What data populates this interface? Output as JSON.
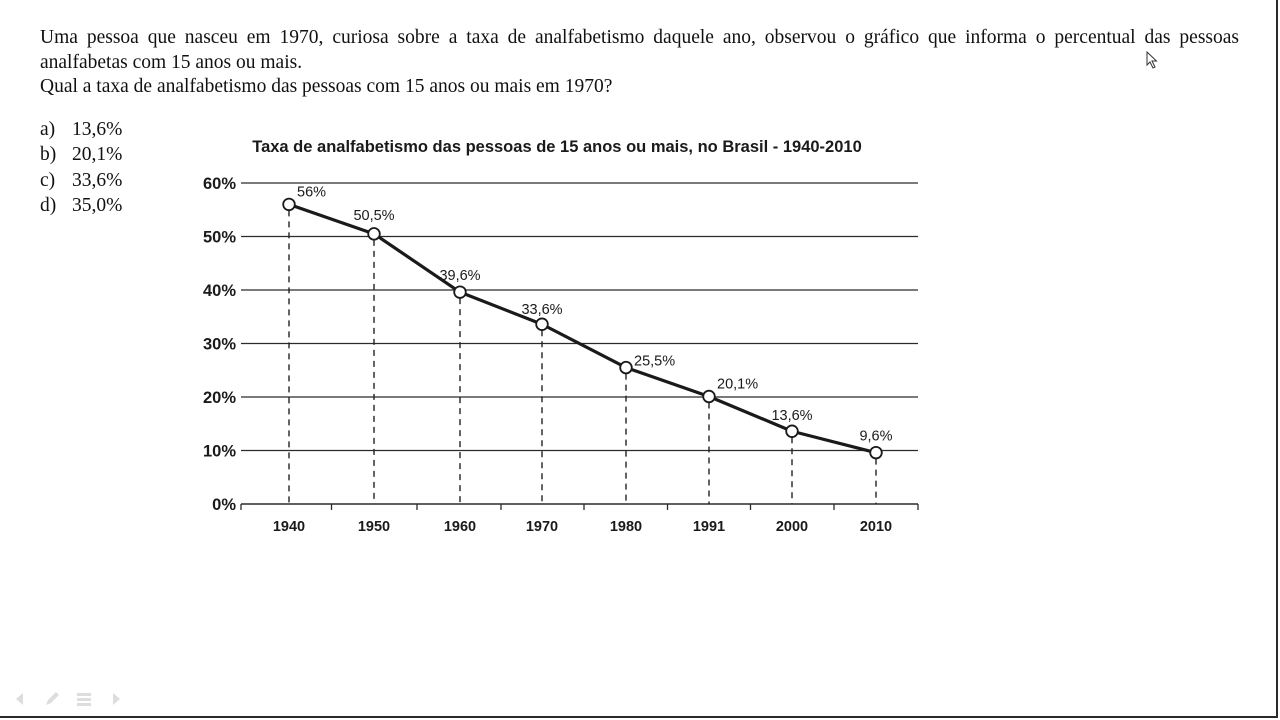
{
  "question": {
    "paragraph_1": "Uma pessoa que nasceu em 1970, curiosa sobre a taxa de analfabetismo daquele ano, observou o gráfico que informa o percentual das pessoas analfabetas com 15 anos ou mais.",
    "paragraph_2": "Qual a taxa de analfabetismo das pessoas com 15 anos ou mais em 1970?"
  },
  "options": [
    {
      "letter": "a)",
      "text": "13,6%"
    },
    {
      "letter": "b)",
      "text": "20,1%"
    },
    {
      "letter": "c)",
      "text": "33,6%"
    },
    {
      "letter": "d)",
      "text": "35,0%"
    }
  ],
  "chart_data": {
    "type": "line",
    "title": "Taxa de analfabetismo das pessoas de 15 anos ou mais, no Brasil - 1940-2010",
    "categories": [
      "1940",
      "1950",
      "1960",
      "1970",
      "1980",
      "1991",
      "2000",
      "2010"
    ],
    "series": [
      {
        "values": [
          56,
          50.5,
          39.6,
          33.6,
          25.5,
          20.1,
          13.6,
          9.6
        ]
      }
    ],
    "data_labels": [
      "56%",
      "50,5%",
      "39,6%",
      "33,6%",
      "25,5%",
      "20,1%",
      "13,6%",
      "9,6%"
    ],
    "y_ticks": [
      "0%",
      "10%",
      "20%",
      "30%",
      "40%",
      "50%",
      "60%"
    ],
    "ylim": [
      0,
      60
    ],
    "xlabel": "",
    "ylabel": "",
    "grid": true,
    "legend": "none",
    "colors": {
      "line": "#1a1a1a",
      "grid": "#2b2b2b",
      "marker_fill": "#ffffff"
    }
  },
  "slide_controls": [
    "arrow-left-icon",
    "pen-icon",
    "menu-icon",
    "arrow-right-icon"
  ]
}
